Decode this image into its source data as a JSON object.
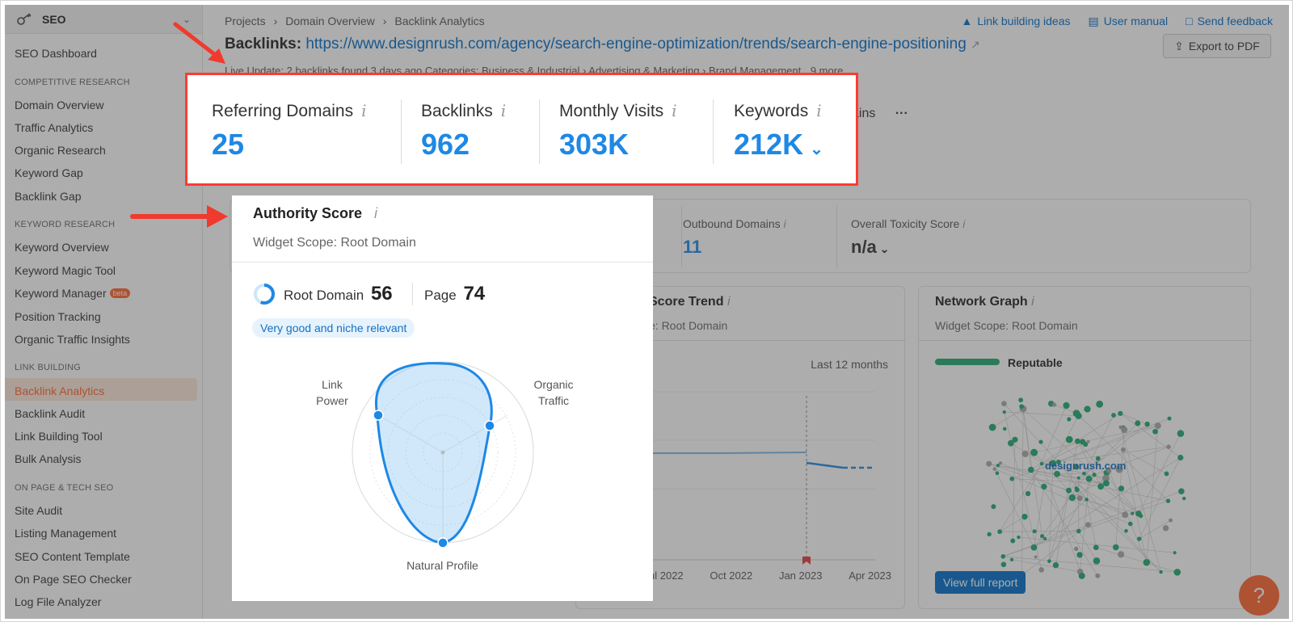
{
  "sidebar": {
    "title": "SEO",
    "items": [
      {
        "label": "SEO Dashboard",
        "type": "item"
      },
      {
        "label": "COMPETITIVE RESEARCH",
        "type": "section"
      },
      {
        "label": "Domain Overview",
        "type": "item"
      },
      {
        "label": "Traffic Analytics",
        "type": "item"
      },
      {
        "label": "Organic Research",
        "type": "item"
      },
      {
        "label": "Keyword Gap",
        "type": "item"
      },
      {
        "label": "Backlink Gap",
        "type": "item"
      },
      {
        "label": "KEYWORD RESEARCH",
        "type": "section"
      },
      {
        "label": "Keyword Overview",
        "type": "item"
      },
      {
        "label": "Keyword Magic Tool",
        "type": "item"
      },
      {
        "label": "Keyword Manager",
        "type": "item",
        "badge": "beta"
      },
      {
        "label": "Position Tracking",
        "type": "item"
      },
      {
        "label": "Organic Traffic Insights",
        "type": "item"
      },
      {
        "label": "LINK BUILDING",
        "type": "section"
      },
      {
        "label": "Backlink Analytics",
        "type": "item",
        "active": true
      },
      {
        "label": "Backlink Audit",
        "type": "item"
      },
      {
        "label": "Link Building Tool",
        "type": "item"
      },
      {
        "label": "Bulk Analysis",
        "type": "item"
      },
      {
        "label": "ON PAGE & TECH SEO",
        "type": "section"
      },
      {
        "label": "Site Audit",
        "type": "item"
      },
      {
        "label": "Listing Management",
        "type": "item"
      },
      {
        "label": "SEO Content Template",
        "type": "item"
      },
      {
        "label": "On Page SEO Checker",
        "type": "item"
      },
      {
        "label": "Log File Analyzer",
        "type": "item"
      }
    ]
  },
  "breadcrumb": [
    "Projects",
    "Domain Overview",
    "Backlink Analytics"
  ],
  "top_links": {
    "ideas": "Link building ideas",
    "manual": "User manual",
    "feedback": "Send feedback"
  },
  "header": {
    "label": "Backlinks:",
    "url": "https://www.designrush.com/agency/search-engine-optimization/trends/search-engine-positioning",
    "export": "Export to PDF",
    "meta": "Live Update: 2 backlinks found 3 days ago   Categories: Business & Industrial › Advertising & Marketing › Brand Management",
    "more": "9 more"
  },
  "tabs_partial": "ains",
  "metrics": [
    {
      "label": "Referring Domains",
      "value": "25"
    },
    {
      "label": "Backlinks",
      "value": "962"
    },
    {
      "label": "Monthly Visits",
      "value": "303K"
    },
    {
      "label": "Keywords",
      "value": "212K"
    }
  ],
  "overview": {
    "outbound_label": "Outbound Domains",
    "outbound_value": "11",
    "toxicity_label": "Overall Toxicity Score",
    "toxicity_value": "n/a"
  },
  "trend": {
    "title": "Score Trend",
    "scope": "e: Root Domain",
    "period": "Last 12 months",
    "x_labels": [
      "ul 2022",
      "Oct 2022",
      "Jan 2023",
      "Apr 2023"
    ]
  },
  "network": {
    "title": "Network Graph",
    "scope": "Widget Scope: Root Domain",
    "status": "Reputable",
    "center": "designrush.com",
    "button": "View full report"
  },
  "authority": {
    "title": "Authority Score",
    "scope": "Widget Scope: Root Domain",
    "root_label": "Root Domain",
    "root_value": "56",
    "page_label": "Page",
    "page_value": "74",
    "badge": "Very good and niche relevant",
    "axes": {
      "link_power": [
        "Link",
        "Power"
      ],
      "organic_traffic": [
        "Organic",
        "Traffic"
      ],
      "natural_profile": "Natural Profile"
    }
  },
  "help": "?",
  "colors": {
    "accent": "#1e88e5",
    "highlight_border": "#ff3b30",
    "active_item": "#ff642d",
    "reputable": "#1eaa6f"
  }
}
